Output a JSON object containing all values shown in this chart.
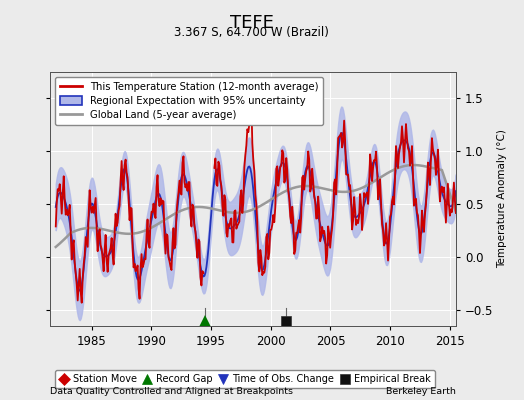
{
  "title": "TEFE",
  "subtitle": "3.367 S, 64.700 W (Brazil)",
  "ylabel": "Temperature Anomaly (°C)",
  "xlabel_note": "Data Quality Controlled and Aligned at Breakpoints",
  "credit": "Berkeley Earth",
  "xlim": [
    1981.5,
    2015.5
  ],
  "ylim": [
    -0.65,
    1.75
  ],
  "yticks": [
    -0.5,
    0,
    0.5,
    1.0,
    1.5
  ],
  "xticks": [
    1985,
    1990,
    1995,
    2000,
    2005,
    2010,
    2015
  ],
  "station_line_color": "#cc0000",
  "regional_line_color": "#2233bb",
  "regional_fill_color": "#b0b8e8",
  "global_line_color": "#999999",
  "bg_color": "#ebebeb",
  "legend_labels": [
    "This Temperature Station (12-month average)",
    "Regional Expectation with 95% uncertainty",
    "Global Land (5-year average)"
  ],
  "markers": {
    "record_gap": {
      "year": 1994.5,
      "value": -0.6,
      "color": "#007700",
      "marker": "^"
    },
    "empirical_break": {
      "year": 2001.3,
      "value": -0.6,
      "color": "#111111",
      "marker": "s"
    }
  },
  "marker_legend": [
    {
      "label": "Station Move",
      "color": "#cc0000",
      "marker": "D"
    },
    {
      "label": "Record Gap",
      "color": "#007700",
      "marker": "^"
    },
    {
      "label": "Time of Obs. Change",
      "color": "#2233bb",
      "marker": "v"
    },
    {
      "label": "Empirical Break",
      "color": "#111111",
      "marker": "s"
    }
  ],
  "vlines": [
    1994.5,
    2001.3
  ],
  "vline_color": "#666666",
  "gap_start": 1994.42,
  "gap_end": 1995.25,
  "station_gap_start": 1994.42,
  "global_start": 1982.0
}
